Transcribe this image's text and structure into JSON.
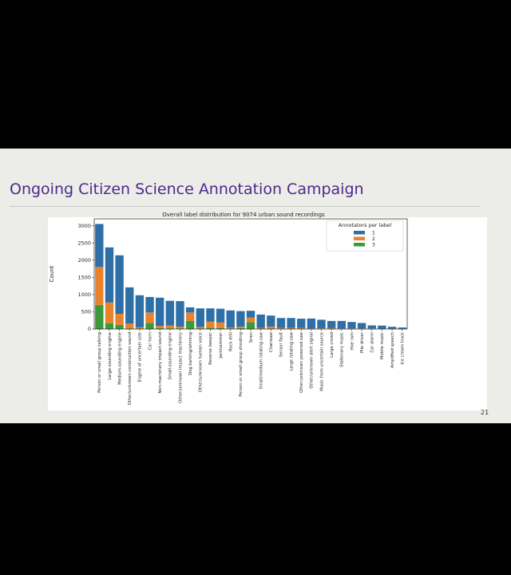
{
  "slide": {
    "title": "Ongoing Citizen Science Annotation Campaign",
    "page_number": "21"
  },
  "chart_data": {
    "type": "bar",
    "stacked": true,
    "title": "Overall label distribution for 9074 urban sound recordings",
    "xlabel": "",
    "ylabel": "Count",
    "ylim": [
      0,
      3200
    ],
    "yticks": [
      0,
      500,
      1000,
      1500,
      2000,
      2500,
      3000
    ],
    "grid": false,
    "legend_title": "Annotators per label",
    "legend_position": "top-right",
    "categories": [
      "Person or small group talking",
      "Large-sounding engine",
      "Medium-sounding engine",
      "Other/unknown construction sound",
      "Engine of uncertain size",
      "Car horn",
      "Non-machinery impact sound",
      "Small-sounding engine",
      "Other/unknown impact machinery",
      "Dog barking/whining",
      "Other/unknown human voice",
      "Reverse beeper",
      "Jackhammer",
      "Rock drill",
      "Person or small group shouting",
      "Siren",
      "Small/medium rotating saw",
      "Chainsaw",
      "Sensor fault",
      "Large rotating saw",
      "Other/unknown powered saw",
      "Other/unknown alert signal",
      "Music from uncertain source",
      "Large crowd",
      "Stationary music",
      "Hoe ram",
      "Pile driver",
      "Car alarm",
      "Mobile music",
      "Amplified speech",
      "Ice cream truck"
    ],
    "series": [
      {
        "name": "1",
        "color": "#2f6fa7",
        "values": [
          1250,
          1600,
          1700,
          1050,
          930,
          450,
          820,
          720,
          740,
          150,
          540,
          380,
          400,
          500,
          450,
          200,
          390,
          320,
          290,
          290,
          270,
          290,
          250,
          210,
          220,
          190,
          160,
          90,
          90,
          55,
          35
        ]
      },
      {
        "name": "2",
        "color": "#e8822d",
        "values": [
          1100,
          600,
          320,
          140,
          40,
          300,
          60,
          80,
          50,
          240,
          40,
          180,
          160,
          20,
          40,
          130,
          20,
          60,
          20,
          20,
          20,
          10,
          15,
          20,
          10,
          10,
          10,
          10,
          5,
          5,
          5
        ]
      },
      {
        "name": "3",
        "color": "#3c9a3c",
        "values": [
          700,
          170,
          120,
          20,
          10,
          180,
          30,
          20,
          20,
          240,
          20,
          40,
          30,
          20,
          30,
          200,
          10,
          10,
          10,
          10,
          10,
          5,
          5,
          5,
          5,
          5,
          5,
          5,
          5,
          5,
          5
        ]
      }
    ]
  }
}
